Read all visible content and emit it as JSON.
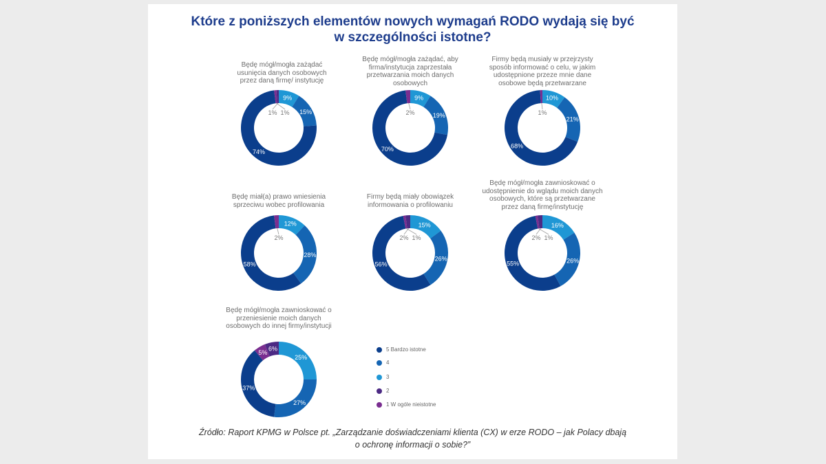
{
  "title_lines": [
    "Które z poniższych elementów nowych wymagań RODO wydają się być",
    "w szczególności istotne?"
  ],
  "source_lines": [
    "Źródło: Raport KPMG w Polsce pt. „Zarządzanie doświadczeniami klienta (CX) w erze RODO – jak Polacy dbają",
    "o ochronę informacji o sobie?”"
  ],
  "colors": {
    "5": "#0b3e8c",
    "4": "#1565b3",
    "3": "#1f97d5",
    "2": "#4c2a84",
    "1": "#7a2e90"
  },
  "legend": [
    {
      "key": "5",
      "label": "5 Bardzo istotne"
    },
    {
      "key": "4",
      "label": "4"
    },
    {
      "key": "3",
      "label": "3"
    },
    {
      "key": "2",
      "label": "2"
    },
    {
      "key": "1",
      "label": "1 W ogóle nieistotne"
    }
  ],
  "chart_data": [
    {
      "type": "pie",
      "title": "Będę mógł/mogła zażądać usunięcia danych osobowych przez daną firmę/ instytucję",
      "title_lines": [
        "Będę mógł/mogła zażądać",
        "usunięcia danych osobowych",
        "przez daną firmę/ instytucję"
      ],
      "categories": [
        "5",
        "4",
        "3",
        "2",
        "1"
      ],
      "values": [
        74,
        15,
        9,
        1,
        1
      ],
      "labels": [
        "74%",
        "15%",
        "9%",
        "1%",
        "1%"
      ]
    },
    {
      "type": "pie",
      "title": "Będę mógł/mogła zażądać, aby firma/instytucja zaprzestała przetwarzania moich danych osobowych",
      "title_lines": [
        "Będę mógł/mogła zażądać, aby",
        "firma/instytucja zaprzestała",
        "przetwarzania moich danych",
        "osobowych"
      ],
      "categories": [
        "5",
        "4",
        "3",
        "2",
        "1"
      ],
      "values": [
        70,
        19,
        9,
        0,
        2
      ],
      "labels": [
        "70%",
        "19%",
        "9%",
        "",
        "2%"
      ]
    },
    {
      "type": "pie",
      "title": "Firmy będą musiały w przejrzysty sposób informować o celu, w jakim udostępnione przeze mnie dane osobowe będą przetwarzane",
      "title_lines": [
        "Firmy będą musiały w przejrzysty",
        "sposób informować o celu, w jakim",
        "udostępnione przeze mnie dane",
        "osobowe będą przetwarzane"
      ],
      "categories": [
        "5",
        "4",
        "3",
        "2",
        "1"
      ],
      "values": [
        68,
        21,
        10,
        0,
        1
      ],
      "labels": [
        "68%",
        "21%",
        "10%",
        "",
        "1%"
      ]
    },
    {
      "type": "pie",
      "title": "Będę miał(a) prawo wniesienia sprzeciwu wobec profilowania",
      "title_lines": [
        "Będę miał(a) prawo wniesienia",
        "sprzeciwu wobec profilowania"
      ],
      "categories": [
        "5",
        "4",
        "3",
        "2",
        "1"
      ],
      "values": [
        58,
        28,
        12,
        0,
        2
      ],
      "labels": [
        "58%",
        "28%",
        "12%",
        "",
        "2%"
      ]
    },
    {
      "type": "pie",
      "title": "Firmy będą miały obowiązek informowania o profilowaniu",
      "title_lines": [
        "Firmy będą miały obowiązek",
        "informowania o profilowaniu"
      ],
      "categories": [
        "5",
        "4",
        "3",
        "2",
        "1"
      ],
      "values": [
        56,
        26,
        15,
        2,
        1
      ],
      "labels": [
        "56%",
        "26%",
        "15%",
        "2%",
        "1%"
      ]
    },
    {
      "type": "pie",
      "title": "Będę mógł/mogła zawnioskować o udostępnienie do wglądu moich danych osobowych, które są przetwarzane przez daną firmę/instytucję",
      "title_lines": [
        "Będę mógł/mogła zawnioskować o",
        "udostępnienie do wglądu moich danych",
        "osobowych, które są przetwarzane",
        "przez daną firmę/instytucję"
      ],
      "categories": [
        "5",
        "4",
        "3",
        "2",
        "1"
      ],
      "values": [
        55,
        26,
        16,
        2,
        1
      ],
      "labels": [
        "55%",
        "26%",
        "16%",
        "2%",
        "1%"
      ]
    },
    {
      "type": "pie",
      "title": "Będę mógł/mogła zawnioskować o przeniesienie moich danych osobowych do innej firmy/instytucji",
      "title_lines": [
        "Będę mógł/mogła zawnioskować o",
        "przeniesienie moich danych",
        "osobowych do innej firmy/instytucji"
      ],
      "categories": [
        "5",
        "4",
        "3",
        "2",
        "1"
      ],
      "values": [
        37,
        27,
        25,
        6,
        5
      ],
      "labels": [
        "37%",
        "27%",
        "25%",
        "6%",
        "5%"
      ]
    }
  ]
}
